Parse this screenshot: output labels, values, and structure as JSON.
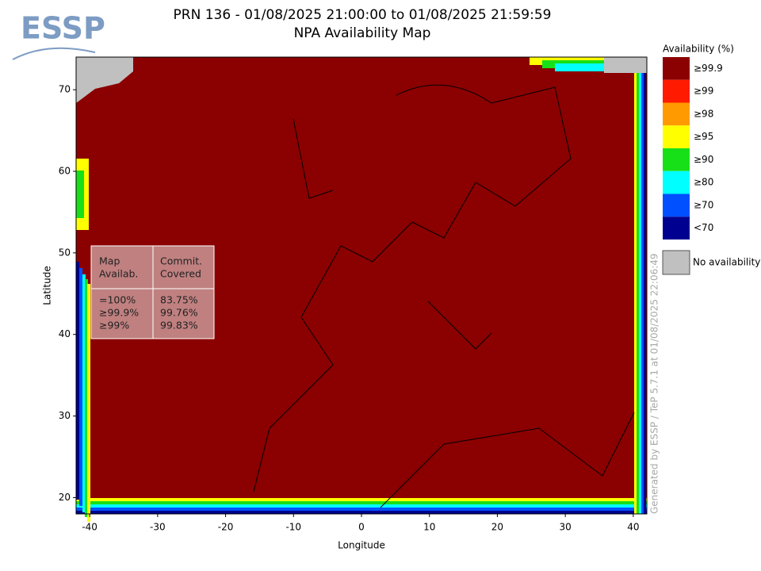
{
  "header": {
    "title": "PRN 136 - 01/08/2025 21:00:00 to 01/08/2025 21:59:59",
    "subtitle": "NPA Availability Map"
  },
  "logo": "ESSP",
  "map": {
    "xlabel": "Longitude",
    "ylabel": "Latitude",
    "xlim": [
      -42,
      42
    ],
    "ylim": [
      18,
      74
    ],
    "xticks": [
      -40,
      -30,
      -20,
      -10,
      0,
      10,
      20,
      30,
      40
    ],
    "yticks": [
      20,
      30,
      40,
      50,
      60,
      70
    ]
  },
  "legend": {
    "title": "Availability (%)",
    "items": [
      {
        "label": "≥99.9",
        "color": "#8b0000"
      },
      {
        "label": "≥99",
        "color": "#ff1a00"
      },
      {
        "label": "≥98",
        "color": "#ff9a00"
      },
      {
        "label": "≥95",
        "color": "#ffff00"
      },
      {
        "label": "≥90",
        "color": "#18e018"
      },
      {
        "label": "≥80",
        "color": "#00ffff"
      },
      {
        "label": "≥70",
        "color": "#0050ff"
      },
      {
        "label": "<70",
        "color": "#000090"
      }
    ],
    "no_data": {
      "label": "No availability",
      "color": "#c0c0c0"
    }
  },
  "table": {
    "header": [
      [
        "Map",
        "Availab."
      ],
      [
        "Commit.",
        "Covered"
      ]
    ],
    "rows": [
      [
        "=100%",
        "83.75%"
      ],
      [
        "≥99.9%",
        "99.76%"
      ],
      [
        "≥99%",
        "99.83%"
      ]
    ]
  },
  "footer": {
    "generated": "Generated by ESSP / TeP 5.7.1 at 01/08/2025 22:06:49"
  }
}
